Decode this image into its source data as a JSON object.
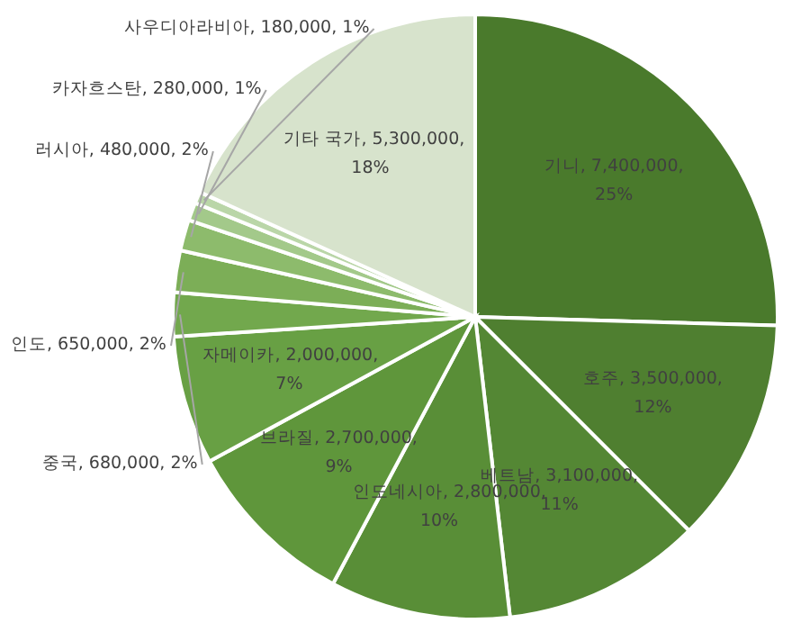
{
  "chart_data": {
    "type": "pie",
    "categories": [
      "기니",
      "호주",
      "베트남",
      "인도네시아",
      "브라질",
      "자메이카",
      "중국",
      "인도",
      "러시아",
      "카자흐스탄",
      "사우디아라비아",
      "기타 국가"
    ],
    "values": [
      7400000,
      3500000,
      3100000,
      2800000,
      2700000,
      2000000,
      680000,
      650000,
      480000,
      280000,
      180000,
      5300000
    ],
    "value_labels": [
      "7,400,000, 25%",
      "3,500,000, 12%",
      "3,100,000, 11%",
      "2,800,000, 10%",
      "2,700,000, 9%",
      "2,000,000, 7%",
      "680,000, 2%",
      "650,000, 2%",
      "480,000, 2%",
      "280,000, 1%",
      "180,000, 1%",
      "5,300,000, 18%"
    ],
    "colors": [
      "#4a7a2c",
      "#4f7f30",
      "#548734",
      "#598e37",
      "#5f963b",
      "#68a044",
      "#72a84d",
      "#7cae57",
      "#8dbb6c",
      "#a3c98a",
      "#bad6a8",
      "#d7e3cc"
    ],
    "legend": false
  }
}
